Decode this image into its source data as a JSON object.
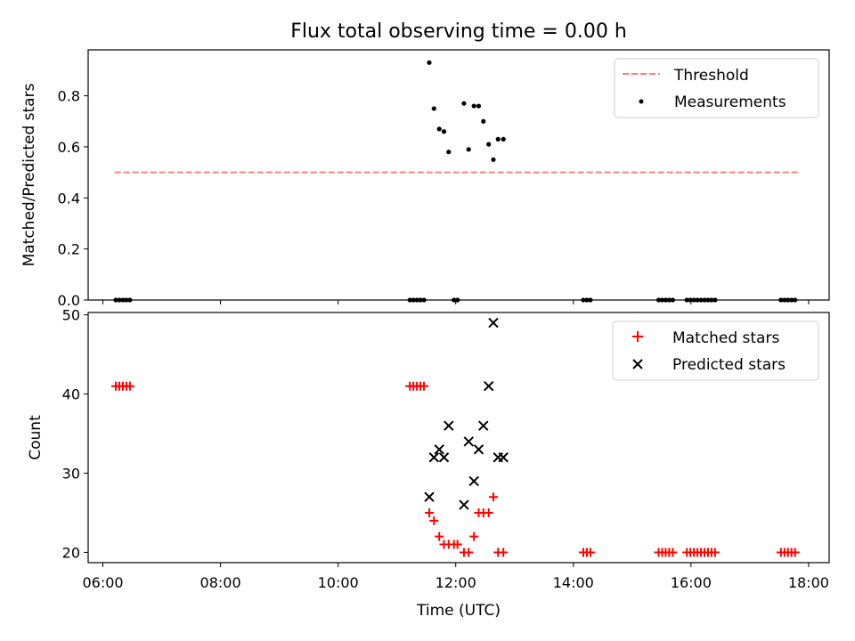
{
  "figure_title": "Flux total observing time = 0.00 h",
  "chart_data": [
    {
      "type": "scatter",
      "ylabel": "Matched/Predicted stars",
      "xlabel": "",
      "ylim": [
        0.0,
        0.98
      ],
      "xlim": [
        5.75,
        18.35
      ],
      "yticks": [
        0.0,
        0.2,
        0.4,
        0.6,
        0.8
      ],
      "ytick_labels": [
        "0.0",
        "0.2",
        "0.4",
        "0.6",
        "0.8"
      ],
      "xticks": [
        6,
        8,
        10,
        12,
        14,
        16,
        18
      ],
      "xtick_labels_shown": false,
      "legend_position": "top-right",
      "threshold": {
        "name": "Threshold",
        "value": 0.5,
        "x": [
          6.2,
          17.85
        ],
        "color": "#ff7f7f",
        "style": "dashed"
      },
      "series": [
        {
          "name": "Measurements",
          "color": "#000000",
          "marker": "dot",
          "points": [
            [
              6.22,
              0.0
            ],
            [
              6.28,
              0.0
            ],
            [
              6.34,
              0.0
            ],
            [
              6.4,
              0.0
            ],
            [
              6.46,
              0.0
            ],
            [
              11.22,
              0.0
            ],
            [
              11.28,
              0.0
            ],
            [
              11.34,
              0.0
            ],
            [
              11.4,
              0.0
            ],
            [
              11.46,
              0.0
            ],
            [
              11.55,
              0.93
            ],
            [
              11.63,
              0.75
            ],
            [
              11.72,
              0.67
            ],
            [
              11.8,
              0.66
            ],
            [
              11.88,
              0.58
            ],
            [
              11.97,
              0.0
            ],
            [
              12.03,
              0.0
            ],
            [
              12.14,
              0.77
            ],
            [
              12.22,
              0.59
            ],
            [
              12.31,
              0.76
            ],
            [
              12.39,
              0.76
            ],
            [
              12.47,
              0.7
            ],
            [
              12.56,
              0.61
            ],
            [
              12.64,
              0.55
            ],
            [
              12.72,
              0.63
            ],
            [
              12.81,
              0.63
            ],
            [
              14.17,
              0.0
            ],
            [
              14.23,
              0.0
            ],
            [
              14.29,
              0.0
            ],
            [
              15.45,
              0.0
            ],
            [
              15.51,
              0.0
            ],
            [
              15.57,
              0.0
            ],
            [
              15.63,
              0.0
            ],
            [
              15.69,
              0.0
            ],
            [
              15.93,
              0.0
            ],
            [
              15.99,
              0.0
            ],
            [
              16.05,
              0.0
            ],
            [
              16.11,
              0.0
            ],
            [
              16.17,
              0.0
            ],
            [
              16.23,
              0.0
            ],
            [
              16.29,
              0.0
            ],
            [
              16.35,
              0.0
            ],
            [
              16.41,
              0.0
            ],
            [
              17.53,
              0.0
            ],
            [
              17.59,
              0.0
            ],
            [
              17.65,
              0.0
            ],
            [
              17.71,
              0.0
            ],
            [
              17.77,
              0.0
            ]
          ]
        }
      ]
    },
    {
      "type": "scatter",
      "ylabel": "Count",
      "xlabel": "Time (UTC)",
      "ylim": [
        18.7,
        50.3
      ],
      "xlim": [
        5.75,
        18.35
      ],
      "yticks": [
        20,
        30,
        40,
        50
      ],
      "ytick_labels": [
        "20",
        "30",
        "40",
        "50"
      ],
      "xticks": [
        6,
        8,
        10,
        12,
        14,
        16,
        18
      ],
      "xtick_labels": [
        "06:00",
        "08:00",
        "10:00",
        "12:00",
        "14:00",
        "16:00",
        "18:00"
      ],
      "legend_position": "top-right",
      "series": [
        {
          "name": "Matched stars",
          "color": "#ff0000",
          "marker": "plus",
          "points": [
            [
              6.22,
              41
            ],
            [
              6.28,
              41
            ],
            [
              6.34,
              41
            ],
            [
              6.4,
              41
            ],
            [
              6.46,
              41
            ],
            [
              11.22,
              41
            ],
            [
              11.28,
              41
            ],
            [
              11.34,
              41
            ],
            [
              11.4,
              41
            ],
            [
              11.46,
              41
            ],
            [
              11.55,
              25
            ],
            [
              11.63,
              24
            ],
            [
              11.72,
              22
            ],
            [
              11.8,
              21
            ],
            [
              11.88,
              21
            ],
            [
              11.97,
              21
            ],
            [
              12.03,
              21
            ],
            [
              12.14,
              20
            ],
            [
              12.22,
              20
            ],
            [
              12.31,
              22
            ],
            [
              12.39,
              25
            ],
            [
              12.47,
              25
            ],
            [
              12.56,
              25
            ],
            [
              12.64,
              27
            ],
            [
              12.72,
              20
            ],
            [
              12.81,
              20
            ],
            [
              14.17,
              20
            ],
            [
              14.23,
              20
            ],
            [
              14.29,
              20
            ],
            [
              15.45,
              20
            ],
            [
              15.51,
              20
            ],
            [
              15.57,
              20
            ],
            [
              15.63,
              20
            ],
            [
              15.69,
              20
            ],
            [
              15.93,
              20
            ],
            [
              15.99,
              20
            ],
            [
              16.05,
              20
            ],
            [
              16.11,
              20
            ],
            [
              16.17,
              20
            ],
            [
              16.23,
              20
            ],
            [
              16.29,
              20
            ],
            [
              16.35,
              20
            ],
            [
              16.41,
              20
            ],
            [
              17.53,
              20
            ],
            [
              17.59,
              20
            ],
            [
              17.65,
              20
            ],
            [
              17.71,
              20
            ],
            [
              17.77,
              20
            ]
          ]
        },
        {
          "name": "Predicted stars",
          "color": "#000000",
          "marker": "x",
          "points": [
            [
              11.55,
              27
            ],
            [
              11.63,
              32
            ],
            [
              11.72,
              33
            ],
            [
              11.8,
              32
            ],
            [
              11.88,
              36
            ],
            [
              12.14,
              26
            ],
            [
              12.22,
              34
            ],
            [
              12.31,
              29
            ],
            [
              12.39,
              33
            ],
            [
              12.47,
              36
            ],
            [
              12.56,
              41
            ],
            [
              12.64,
              49
            ],
            [
              12.72,
              32
            ],
            [
              12.81,
              32
            ]
          ]
        }
      ]
    }
  ]
}
